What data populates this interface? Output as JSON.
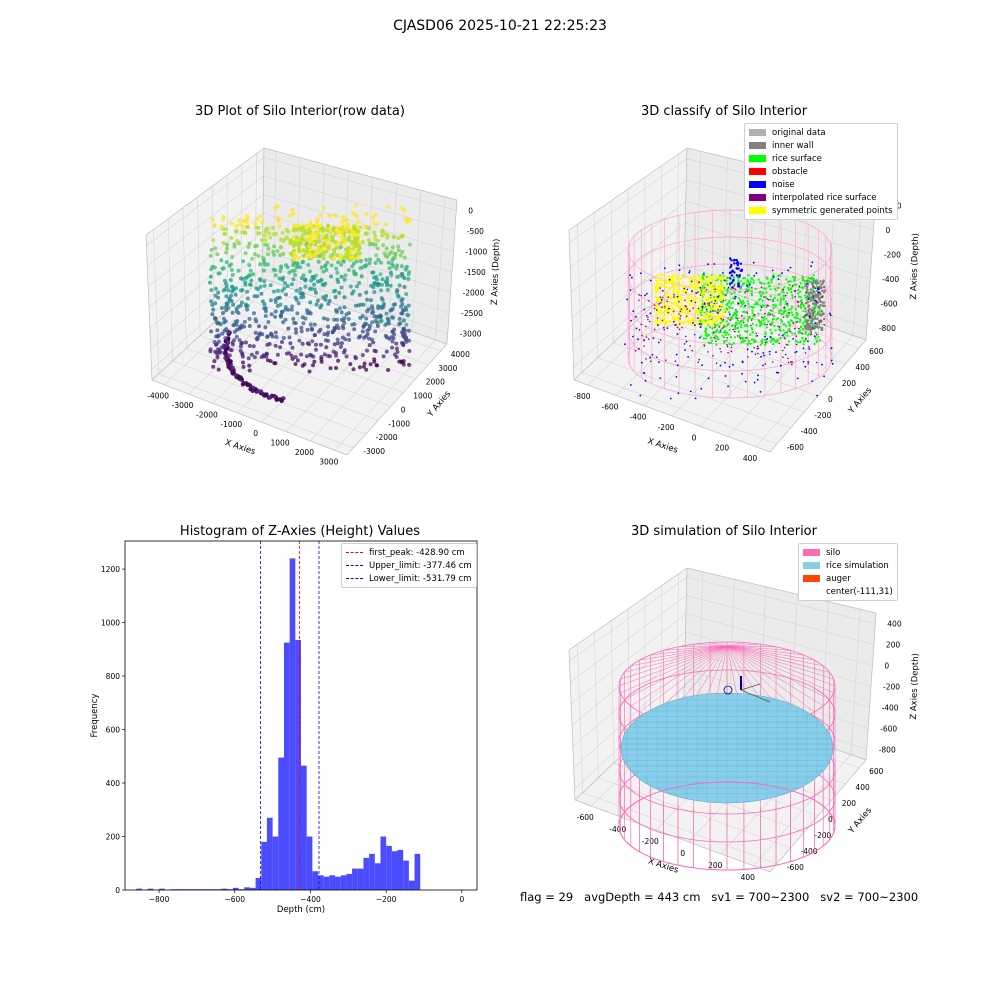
{
  "figure_title": "CJASD06 2025-10-21 22:25:23",
  "footer": {
    "flag": "flag = 29",
    "avg_depth": "avgDepth = 443 cm",
    "sv1": "sv1 = 700~2300",
    "sv2": "sv2 = 700~2300"
  },
  "colors": {
    "original_data": "#b0b0b0",
    "inner_wall": "#808080",
    "rice_surface": "#00ff00",
    "obstacle": "#ff0000",
    "noise": "#0000ff",
    "interpolated": "#800080",
    "symmetric": "#ffff00",
    "silo": "#ff69b4",
    "rice_simulation": "#87ceeb",
    "auger": "#ff4500",
    "hist_bar": "#4b4bff"
  },
  "chart_data": [
    {
      "type": "scatter",
      "title": "3D Plot of Silo Interior(row data)",
      "xlabel": "X Axies",
      "ylabel": "Y Axies",
      "zlabel": "Z Axies (Depth)",
      "x_ticks": [
        "-4000",
        "-3000",
        "-2000",
        "-1000",
        "0",
        "1000",
        "2000",
        "3000"
      ],
      "y_ticks": [
        "-3000",
        "-2000",
        "-1000",
        "0",
        "1000",
        "2000",
        "3000",
        "4000"
      ],
      "z_ticks": [
        "0",
        "-500",
        "-1000",
        "-1500",
        "-2000",
        "-2500",
        "-3000"
      ],
      "colormap": "viridis"
    },
    {
      "type": "scatter",
      "title": "3D classify of Silo Interior",
      "xlabel": "X Axies",
      "ylabel": "Y Axies",
      "zlabel": "Z Axies (Depth)",
      "x_ticks": [
        "-800",
        "-600",
        "-400",
        "-200",
        "0",
        "200",
        "400"
      ],
      "y_ticks": [
        "-600",
        "-400",
        "-200",
        "0",
        "200",
        "400",
        "600"
      ],
      "z_ticks": [
        "200",
        "0",
        "-200",
        "-400",
        "-600",
        "-800"
      ],
      "z_top_partial": "0",
      "legend": [
        "original data",
        "inner wall",
        "rice surface",
        "obstacle",
        "noise",
        "interpolated rice surface",
        "symmetric generated points"
      ]
    },
    {
      "type": "bar",
      "title": "Histogram of Z-Axies (Height) Values",
      "xlabel": "Depth (cm)",
      "ylabel": "Frequency",
      "xlim": [
        -890,
        40
      ],
      "ylim": [
        0,
        1305
      ],
      "x_ticks": [
        -800,
        -600,
        -400,
        -200,
        0
      ],
      "y_ticks": [
        0,
        200,
        400,
        600,
        800,
        1000,
        1200
      ],
      "bin_width": 15,
      "bins": [
        [
          -860,
          5
        ],
        [
          -845,
          0
        ],
        [
          -830,
          5
        ],
        [
          -815,
          0
        ],
        [
          -800,
          5
        ],
        [
          -785,
          0
        ],
        [
          -770,
          3
        ],
        [
          -755,
          3
        ],
        [
          -740,
          3
        ],
        [
          -725,
          3
        ],
        [
          -710,
          3
        ],
        [
          -695,
          3
        ],
        [
          -680,
          3
        ],
        [
          -665,
          3
        ],
        [
          -650,
          3
        ],
        [
          -635,
          5
        ],
        [
          -620,
          3
        ],
        [
          -605,
          8
        ],
        [
          -590,
          3
        ],
        [
          -575,
          10
        ],
        [
          -560,
          8
        ],
        [
          -545,
          45
        ],
        [
          -530,
          180
        ],
        [
          -515,
          270
        ],
        [
          -500,
          200
        ],
        [
          -485,
          495
        ],
        [
          -470,
          925
        ],
        [
          -455,
          1240
        ],
        [
          -440,
          935
        ],
        [
          -425,
          465
        ],
        [
          -410,
          200
        ],
        [
          -395,
          70
        ],
        [
          -380,
          55
        ],
        [
          -365,
          50
        ],
        [
          -350,
          55
        ],
        [
          -335,
          50
        ],
        [
          -320,
          55
        ],
        [
          -305,
          60
        ],
        [
          -290,
          80
        ],
        [
          -275,
          80
        ],
        [
          -260,
          120
        ],
        [
          -245,
          135
        ],
        [
          -230,
          100
        ],
        [
          -215,
          200
        ],
        [
          -200,
          165
        ],
        [
          -185,
          145
        ],
        [
          -170,
          150
        ],
        [
          -155,
          110
        ],
        [
          -140,
          35
        ],
        [
          -125,
          135
        ]
      ],
      "lines": [
        {
          "label": "first_peak: -428.90 cm",
          "x": -428.9,
          "color": "#ff0000"
        },
        {
          "label": "Upper_limit: -377.46 cm",
          "x": -377.46,
          "color": "#0000ff"
        },
        {
          "label": "Lower_limit: -531.79 cm",
          "x": -531.79,
          "color": "#0000ff"
        }
      ]
    },
    {
      "type": "scatter",
      "title": "3D simulation of Silo Interior",
      "xlabel": "X Axies",
      "ylabel": "Y Axies",
      "zlabel": "Z Axies (Depth)",
      "x_ticks": [
        "-600",
        "-400",
        "-200",
        "0",
        "200",
        "400"
      ],
      "y_ticks": [
        "-600",
        "-400",
        "-200",
        "0",
        "200",
        "400",
        "600"
      ],
      "z_ticks": [
        "400",
        "200",
        "0",
        "-200",
        "-400",
        "-600",
        "-800"
      ],
      "legend": [
        "silo",
        "rice simulation",
        "auger",
        "center(-111,31)"
      ]
    }
  ]
}
